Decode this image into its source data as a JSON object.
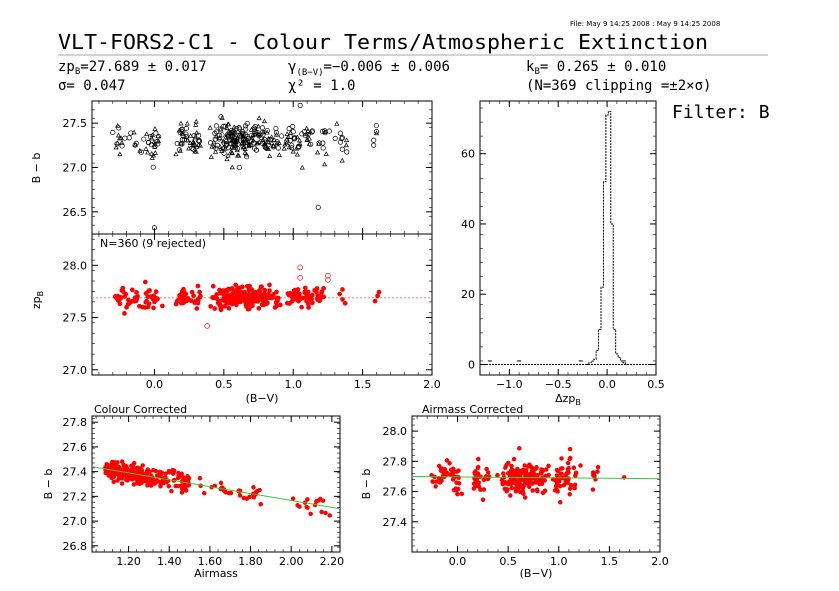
{
  "header": {
    "file_stamp": "File: May  9 14:25 2008 : May  9 14:25 2008",
    "title": "VLT-FORS2-C1 - Colour Terms/Atmospheric Extinction",
    "filter_label": "Filter: B",
    "stats": {
      "zp_sym": "zp",
      "zp_sub": "B",
      "zp_val": "=27.689 ± 0.017",
      "sigma": "σ= 0.047",
      "gamma_sym": "γ",
      "gamma_sub": "(B−V)",
      "gamma_val": "=−0.006 ± 0.006",
      "chi": "χ² = 1.0",
      "k_sym": "k",
      "k_sub": "B",
      "k_val": "= 0.265 ± 0.010",
      "clip": "(N=369 clipping =±2×σ)"
    }
  },
  "colors": {
    "accent": "#ff0000",
    "fit_line": "#33cc33",
    "axis": "#000000",
    "ref_line": "#ff6666"
  },
  "chart_data": [
    {
      "id": "raw",
      "type": "scatter",
      "ylabel": "B − b",
      "xlim": [
        -0.45,
        2.0
      ],
      "ylim": [
        26.25,
        27.75
      ],
      "yticks": [
        26.5,
        27.0,
        27.5
      ],
      "x_range_dense": [
        -0.3,
        1.6
      ],
      "y_center": 27.33,
      "y_spread": 0.09,
      "outliers": [
        [
          0.0,
          26.32
        ],
        [
          1.18,
          26.55
        ],
        [
          1.05,
          27.7
        ]
      ],
      "series": [
        {
          "marker": "circle-open",
          "count": 180
        },
        {
          "marker": "triangle-open",
          "count": 180
        }
      ]
    },
    {
      "id": "zp",
      "type": "scatter",
      "annotation": "N=360 (9 rejected)",
      "ylabel_sym": "zp",
      "ylabel_sub": "B",
      "xlabel": "(B−V)",
      "xlim": [
        -0.45,
        2.0
      ],
      "xticks": [
        0.0,
        0.5,
        1.0,
        1.5,
        2.0
      ],
      "xtick_labels": [
        "0.0",
        "0.5",
        "1.0",
        "1.5",
        "2.0"
      ],
      "ylim": [
        26.95,
        28.3
      ],
      "yticks": [
        27.0,
        27.5,
        28.0
      ],
      "ref_level": 27.689,
      "x_range_dense": [
        -0.3,
        1.9
      ],
      "y_center": 27.69,
      "y_spread": 0.05,
      "rejected": [
        [
          0.38,
          27.42
        ],
        [
          1.05,
          27.98
        ],
        [
          1.05,
          27.88
        ],
        [
          1.25,
          27.9
        ],
        [
          1.25,
          27.86
        ]
      ],
      "count": 360
    },
    {
      "id": "hist",
      "type": "bar",
      "xlabel_sym": "Δzp",
      "xlabel_sub": "B",
      "xlim": [
        -1.3,
        0.5
      ],
      "xticks": [
        -1.0,
        -0.5,
        0.0,
        0.5
      ],
      "xtick_labels": [
        "−1.0",
        "−0.5",
        "0.0",
        "0.5"
      ],
      "ylim": [
        -3,
        75
      ],
      "yticks": [
        0,
        20,
        40,
        60
      ],
      "bins": [
        [
          -0.2,
          0.0
        ],
        [
          -0.175,
          0.5
        ],
        [
          -0.15,
          1.0
        ],
        [
          -0.125,
          1.5
        ],
        [
          -0.1,
          4.0
        ],
        [
          -0.075,
          10.0
        ],
        [
          -0.05,
          22.0
        ],
        [
          -0.025,
          52.0
        ],
        [
          0.0,
          71.0
        ],
        [
          0.025,
          72.0
        ],
        [
          0.05,
          40.0
        ],
        [
          0.075,
          10.0
        ],
        [
          0.1,
          3.0
        ],
        [
          0.125,
          2.0
        ],
        [
          0.15,
          1.0
        ],
        [
          0.175,
          0.5
        ],
        [
          0.2,
          0.0
        ]
      ],
      "bin_width": 0.025,
      "stray": [
        [
          -1.2,
          1
        ],
        [
          -0.9,
          1
        ],
        [
          -0.27,
          1
        ],
        [
          0.17,
          1
        ]
      ]
    },
    {
      "id": "colour_corrected",
      "type": "scatter",
      "title": "Colour Corrected",
      "ylabel": "B − b",
      "xlabel": "Airmass",
      "xlim": [
        1.02,
        2.24
      ],
      "xticks": [
        1.2,
        1.4,
        1.6,
        1.8,
        2.0,
        2.2
      ],
      "xtick_labels": [
        "1.20",
        "1.40",
        "1.60",
        "1.80",
        "2.00",
        "2.20"
      ],
      "ylim": [
        26.75,
        27.85
      ],
      "yticks": [
        26.8,
        27.0,
        27.2,
        27.4,
        27.6,
        27.8
      ],
      "fit_line": [
        [
          1.02,
          27.44
        ],
        [
          2.24,
          27.1
        ]
      ],
      "count": 300
    },
    {
      "id": "airmass_corrected",
      "type": "scatter",
      "title": "Airmass Corrected",
      "ylabel": "B − b",
      "xlabel": "(B−V)",
      "xlim": [
        -0.45,
        2.0
      ],
      "xticks": [
        0.0,
        0.5,
        1.0,
        1.5,
        2.0
      ],
      "xtick_labels": [
        "0.0",
        "0.5",
        "1.0",
        "1.5",
        "2.0"
      ],
      "ylim": [
        27.2,
        28.1
      ],
      "yticks": [
        27.4,
        27.6,
        27.8,
        28.0
      ],
      "fit_line": [
        [
          -0.45,
          27.7
        ],
        [
          2.0,
          27.685
        ]
      ],
      "count": 300
    }
  ]
}
